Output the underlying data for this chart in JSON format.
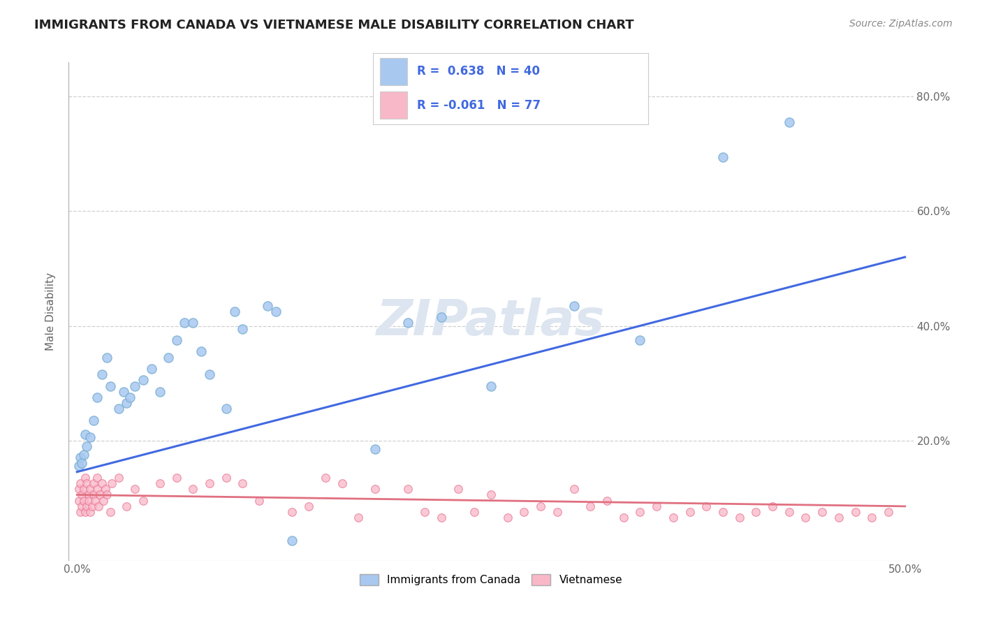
{
  "title": "IMMIGRANTS FROM CANADA VS VIETNAMESE MALE DISABILITY CORRELATION CHART",
  "source": "Source: ZipAtlas.com",
  "ylabel": "Male Disability",
  "legend_entries": [
    {
      "label": "Immigrants from Canada",
      "R": "0.638",
      "N": "40",
      "color": "#a8c8f0",
      "edge": "#7bafd4"
    },
    {
      "label": "Vietnamese",
      "R": "-0.061",
      "N": "77",
      "color": "#f9b8c8",
      "edge": "#e87090"
    }
  ],
  "watermark": "ZIPatlas",
  "blue_scatter": [
    [
      0.001,
      0.155
    ],
    [
      0.002,
      0.17
    ],
    [
      0.003,
      0.16
    ],
    [
      0.004,
      0.175
    ],
    [
      0.005,
      0.21
    ],
    [
      0.006,
      0.19
    ],
    [
      0.008,
      0.205
    ],
    [
      0.01,
      0.235
    ],
    [
      0.012,
      0.275
    ],
    [
      0.015,
      0.315
    ],
    [
      0.018,
      0.345
    ],
    [
      0.02,
      0.295
    ],
    [
      0.025,
      0.255
    ],
    [
      0.028,
      0.285
    ],
    [
      0.03,
      0.265
    ],
    [
      0.032,
      0.275
    ],
    [
      0.035,
      0.295
    ],
    [
      0.04,
      0.305
    ],
    [
      0.045,
      0.325
    ],
    [
      0.05,
      0.285
    ],
    [
      0.055,
      0.345
    ],
    [
      0.06,
      0.375
    ],
    [
      0.065,
      0.405
    ],
    [
      0.07,
      0.405
    ],
    [
      0.075,
      0.355
    ],
    [
      0.08,
      0.315
    ],
    [
      0.09,
      0.255
    ],
    [
      0.095,
      0.425
    ],
    [
      0.1,
      0.395
    ],
    [
      0.115,
      0.435
    ],
    [
      0.12,
      0.425
    ],
    [
      0.13,
      0.025
    ],
    [
      0.18,
      0.185
    ],
    [
      0.2,
      0.405
    ],
    [
      0.22,
      0.415
    ],
    [
      0.25,
      0.295
    ],
    [
      0.3,
      0.435
    ],
    [
      0.34,
      0.375
    ],
    [
      0.39,
      0.695
    ],
    [
      0.43,
      0.755
    ]
  ],
  "pink_scatter": [
    [
      0.001,
      0.115
    ],
    [
      0.001,
      0.095
    ],
    [
      0.002,
      0.075
    ],
    [
      0.002,
      0.125
    ],
    [
      0.003,
      0.085
    ],
    [
      0.003,
      0.105
    ],
    [
      0.004,
      0.095
    ],
    [
      0.004,
      0.115
    ],
    [
      0.005,
      0.075
    ],
    [
      0.005,
      0.135
    ],
    [
      0.006,
      0.125
    ],
    [
      0.006,
      0.085
    ],
    [
      0.007,
      0.105
    ],
    [
      0.007,
      0.095
    ],
    [
      0.008,
      0.115
    ],
    [
      0.008,
      0.075
    ],
    [
      0.009,
      0.085
    ],
    [
      0.01,
      0.125
    ],
    [
      0.01,
      0.105
    ],
    [
      0.011,
      0.095
    ],
    [
      0.012,
      0.115
    ],
    [
      0.012,
      0.135
    ],
    [
      0.013,
      0.085
    ],
    [
      0.014,
      0.105
    ],
    [
      0.015,
      0.125
    ],
    [
      0.016,
      0.095
    ],
    [
      0.017,
      0.115
    ],
    [
      0.018,
      0.105
    ],
    [
      0.02,
      0.075
    ],
    [
      0.021,
      0.125
    ],
    [
      0.025,
      0.135
    ],
    [
      0.03,
      0.085
    ],
    [
      0.035,
      0.115
    ],
    [
      0.04,
      0.095
    ],
    [
      0.05,
      0.125
    ],
    [
      0.06,
      0.135
    ],
    [
      0.07,
      0.115
    ],
    [
      0.08,
      0.125
    ],
    [
      0.09,
      0.135
    ],
    [
      0.1,
      0.125
    ],
    [
      0.11,
      0.095
    ],
    [
      0.13,
      0.075
    ],
    [
      0.14,
      0.085
    ],
    [
      0.15,
      0.135
    ],
    [
      0.16,
      0.125
    ],
    [
      0.17,
      0.065
    ],
    [
      0.18,
      0.115
    ],
    [
      0.2,
      0.115
    ],
    [
      0.21,
      0.075
    ],
    [
      0.22,
      0.065
    ],
    [
      0.23,
      0.115
    ],
    [
      0.24,
      0.075
    ],
    [
      0.25,
      0.105
    ],
    [
      0.26,
      0.065
    ],
    [
      0.27,
      0.075
    ],
    [
      0.28,
      0.085
    ],
    [
      0.29,
      0.075
    ],
    [
      0.3,
      0.115
    ],
    [
      0.31,
      0.085
    ],
    [
      0.32,
      0.095
    ],
    [
      0.33,
      0.065
    ],
    [
      0.34,
      0.075
    ],
    [
      0.35,
      0.085
    ],
    [
      0.36,
      0.065
    ],
    [
      0.37,
      0.075
    ],
    [
      0.38,
      0.085
    ],
    [
      0.39,
      0.075
    ],
    [
      0.4,
      0.065
    ],
    [
      0.41,
      0.075
    ],
    [
      0.42,
      0.085
    ],
    [
      0.43,
      0.075
    ],
    [
      0.44,
      0.065
    ],
    [
      0.45,
      0.075
    ],
    [
      0.46,
      0.065
    ],
    [
      0.47,
      0.075
    ],
    [
      0.48,
      0.065
    ],
    [
      0.49,
      0.075
    ]
  ],
  "blue_line": {
    "x": [
      0.0,
      0.5
    ],
    "y": [
      0.145,
      0.52
    ]
  },
  "pink_line": {
    "x": [
      0.0,
      0.5
    ],
    "y": [
      0.105,
      0.085
    ]
  },
  "xlim": [
    -0.005,
    0.505
  ],
  "ylim": [
    -0.01,
    0.86
  ],
  "yticks": [
    0.0,
    0.2,
    0.4,
    0.6,
    0.8
  ],
  "ytick_labels": [
    "",
    "20.0%",
    "40.0%",
    "60.0%",
    "80.0%"
  ],
  "background_color": "#ffffff",
  "grid_color": "#d0d0d0",
  "blue_color": "#a8c8f0",
  "blue_edge_color": "#7bafd4",
  "pink_color": "#f9b8c8",
  "pink_edge_color": "#e87090",
  "blue_line_color": "#4169e1",
  "pink_line_color": "#e07080",
  "title_fontsize": 13,
  "source_fontsize": 10,
  "watermark_color": "#dde5f0",
  "watermark_fontsize": 52,
  "legend_text_color": "#4169e1"
}
